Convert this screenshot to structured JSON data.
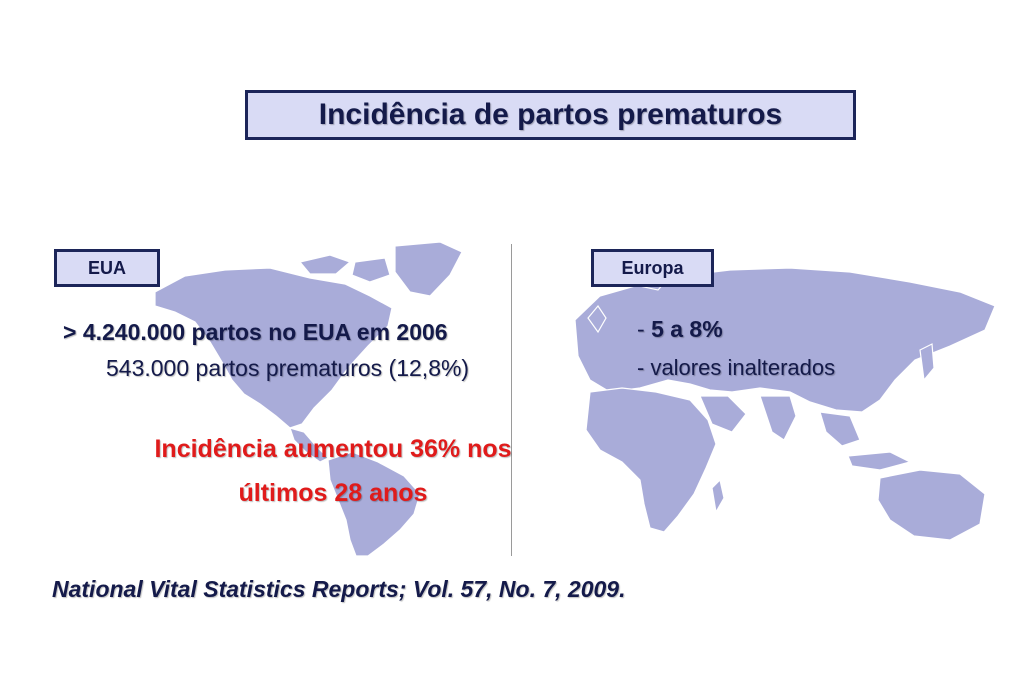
{
  "title": "Incidência de partos prematuros",
  "map_color": "#a9acd9",
  "eua": {
    "label": "EUA",
    "line1": "> 4.240.000 partos no EUA em 2006",
    "line2": "543.000 partos prematuros (12,8%)",
    "highlight": "Incidência aumentou 36% nos últimos 28 anos"
  },
  "europa": {
    "label": "Europa",
    "line1_dash": "- ",
    "line1_value": "5 a 8%",
    "line2": "- valores inalterados"
  },
  "reference": "National Vital Statistics Reports; Vol. 57, No. 7, 2009."
}
